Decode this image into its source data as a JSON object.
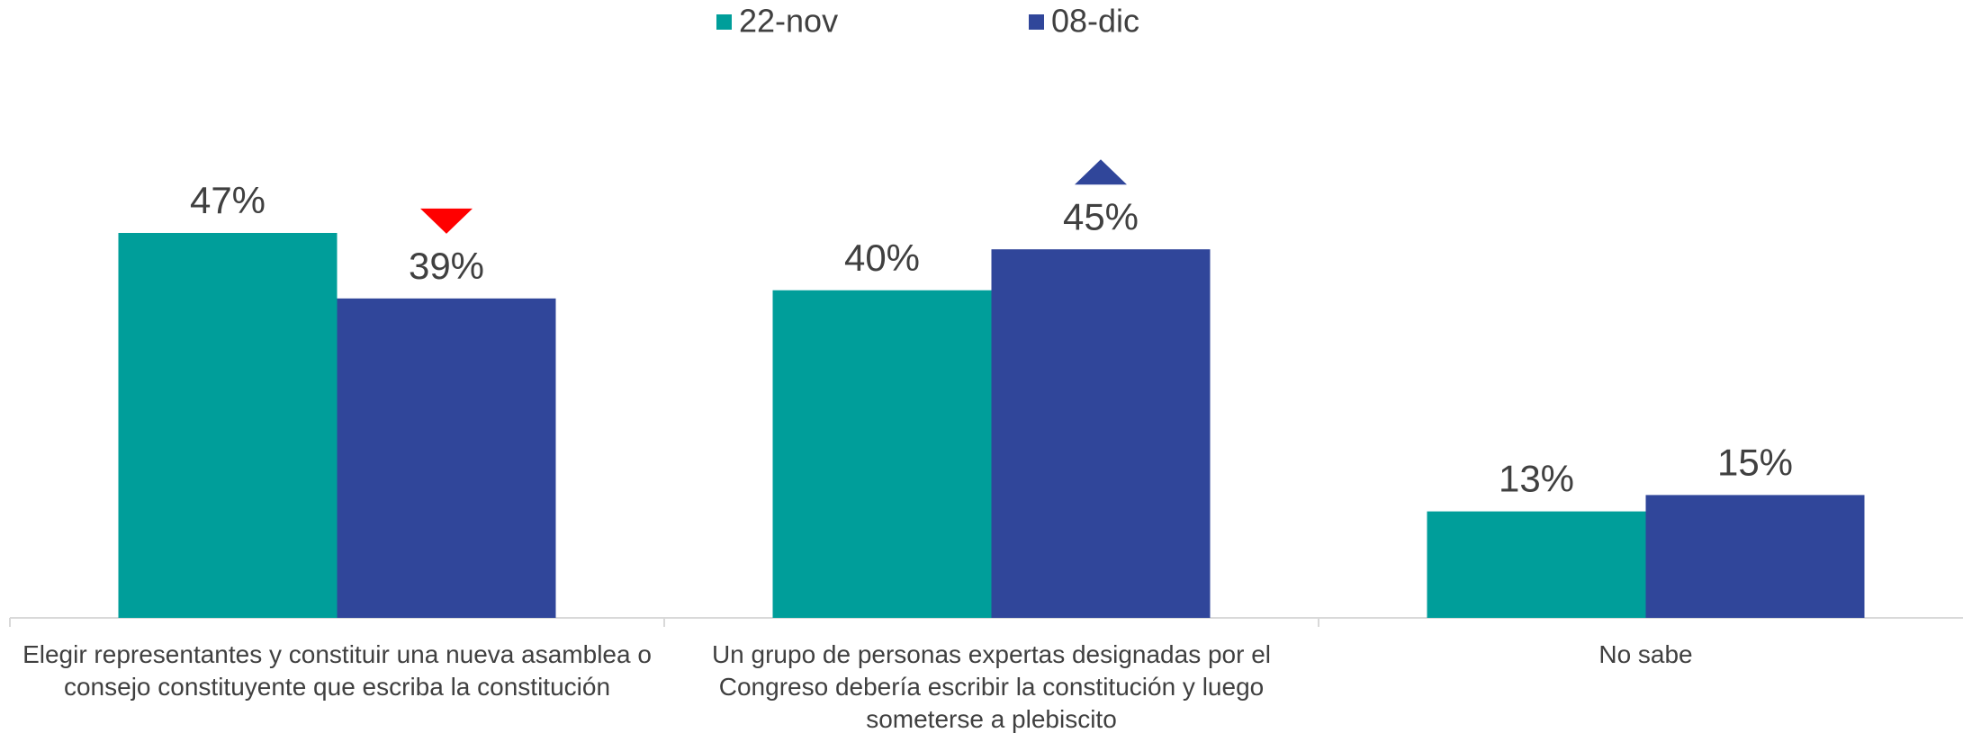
{
  "chart_data": {
    "type": "bar",
    "categories": [
      "Elegir representantes y constituir una nueva asamblea o consejo constituyente que escriba la constitución",
      "Un grupo de personas expertas designadas por el Congreso debería escribir la constitución y luego someterse a plebiscito",
      "No sabe"
    ],
    "series": [
      {
        "name": "22-nov",
        "color": "#009e9a",
        "values": [
          47,
          40,
          13
        ],
        "value_labels": [
          "47%",
          "40%",
          "13%"
        ]
      },
      {
        "name": "08-dic",
        "color": "#30469a",
        "values": [
          39,
          45,
          15
        ],
        "value_labels": [
          "39%",
          "45%",
          "15%"
        ]
      }
    ],
    "ylim": [
      0,
      75
    ],
    "legend": "top",
    "change_markers": [
      {
        "series": 1,
        "index": 0,
        "direction": "down",
        "color": "#ff0000"
      },
      {
        "series": 1,
        "index": 1,
        "direction": "up",
        "color": "#30469a"
      }
    ]
  }
}
